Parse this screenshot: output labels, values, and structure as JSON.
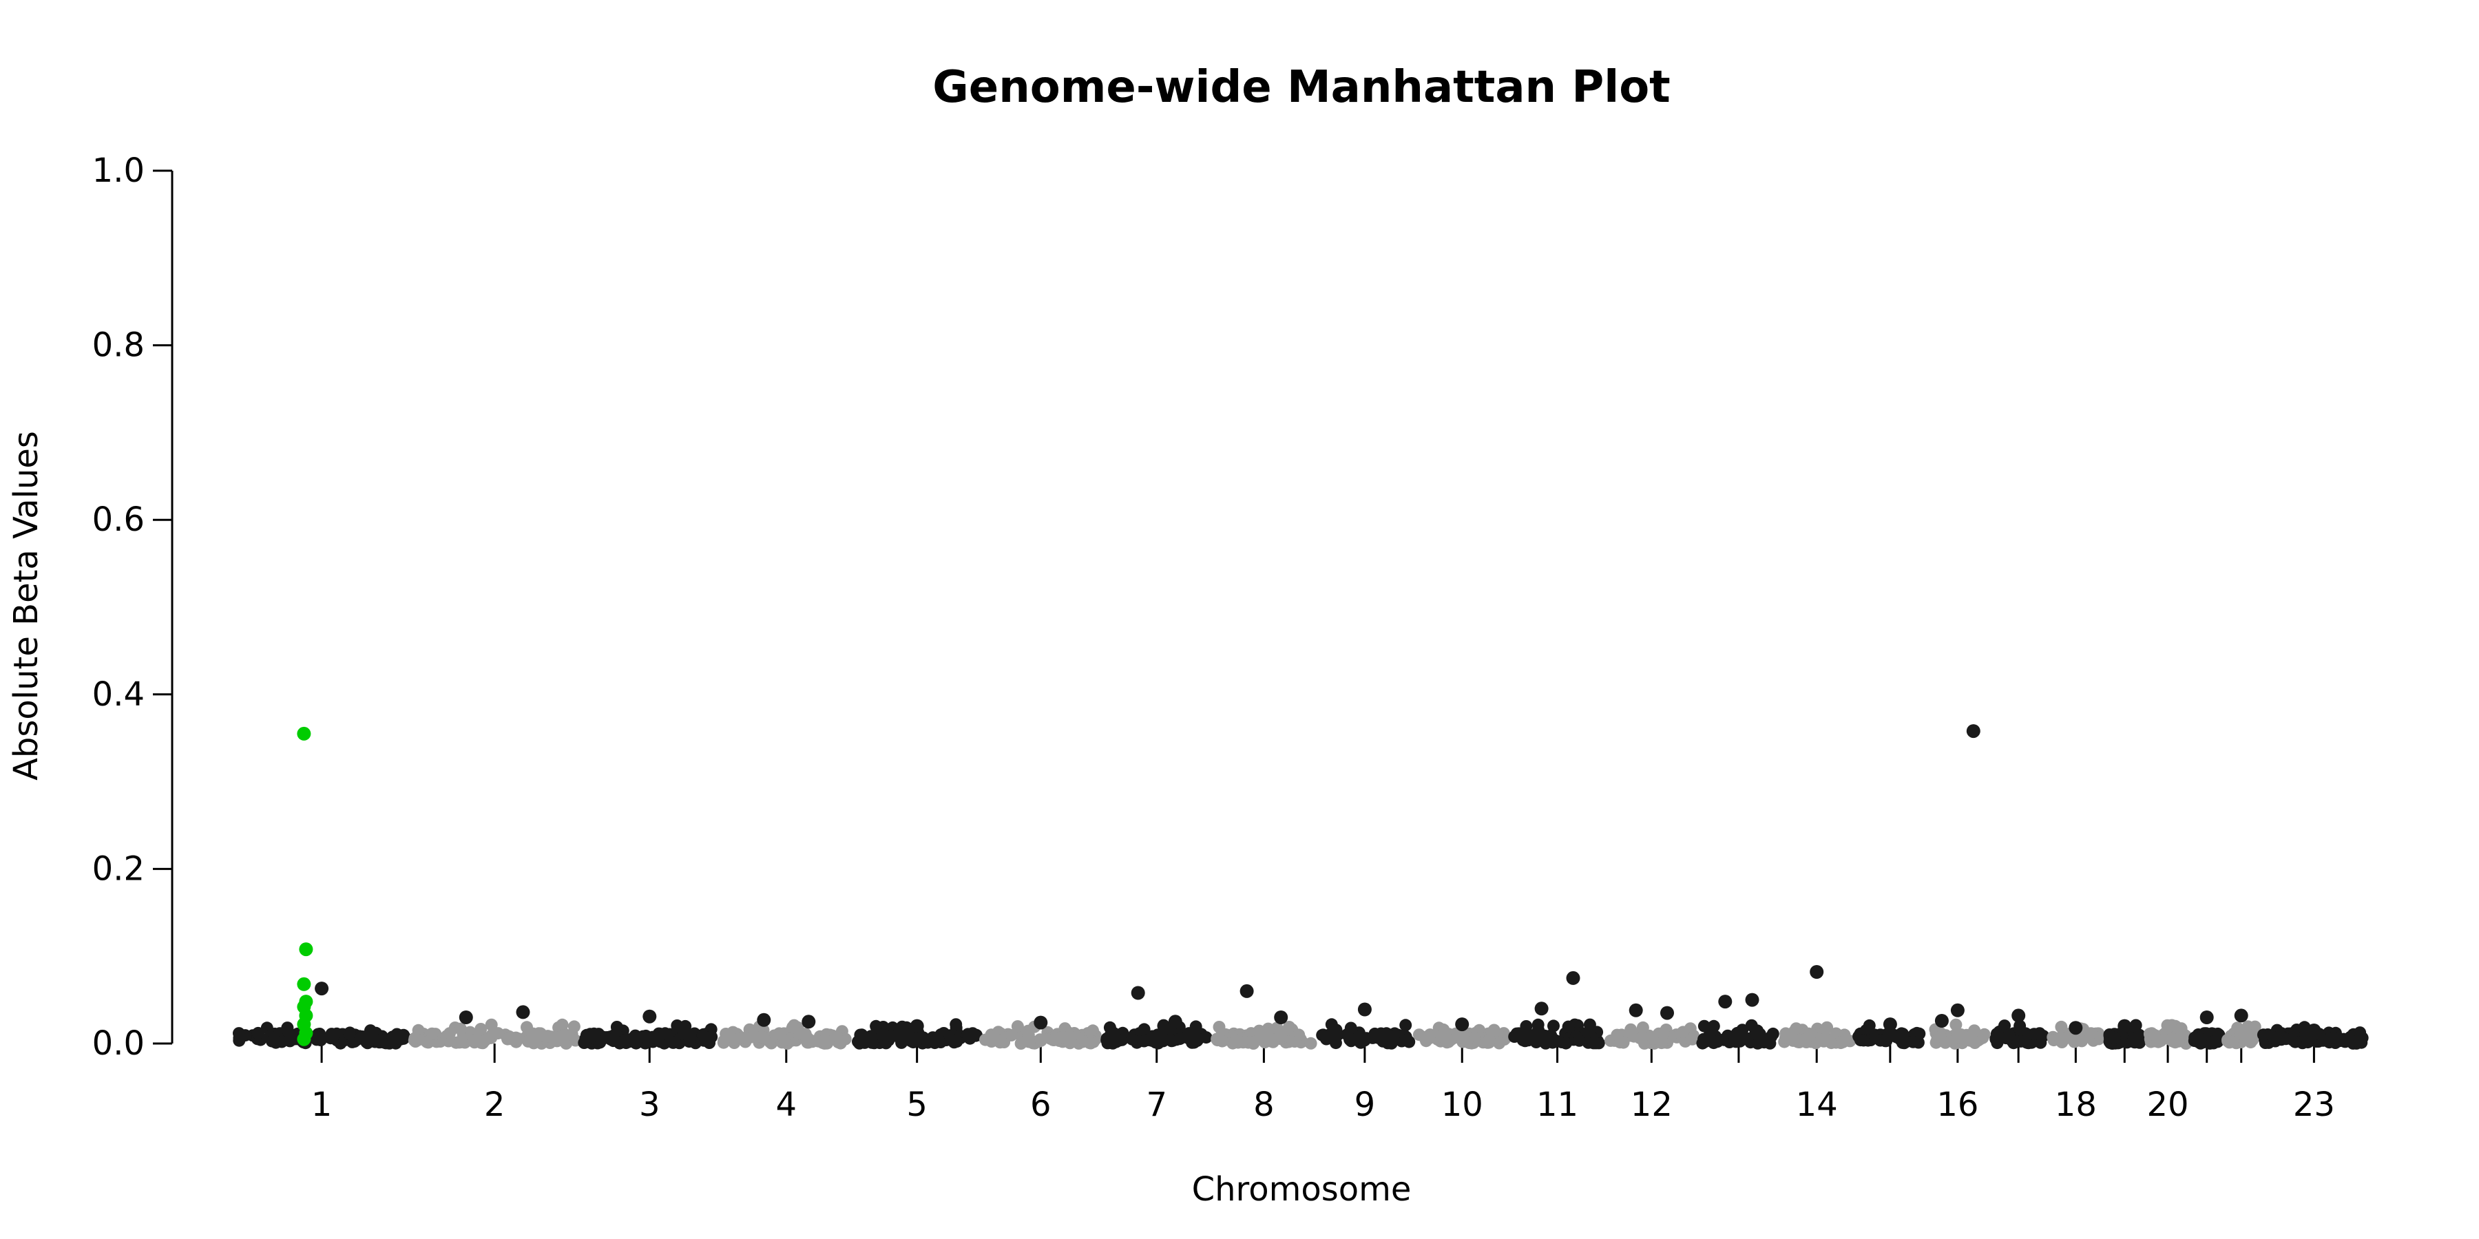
{
  "chart_data": {
    "type": "scatter",
    "title": "Genome-wide Manhattan Plot",
    "xlabel": "Chromosome",
    "ylabel": "Absolute Beta Values",
    "ylim": [
      0,
      1.0
    ],
    "y_ticks": [
      "0.0",
      "0.2",
      "0.4",
      "0.6",
      "0.8",
      "1.0"
    ],
    "grid": false,
    "legend": "none",
    "chromosome_labels": [
      "1",
      "2",
      "3",
      "4",
      "5",
      "6",
      "7",
      "8",
      "9",
      "10",
      "11",
      "12",
      "14",
      "16",
      "18",
      "20",
      "23"
    ],
    "chromosomes": [
      {
        "chr": "1",
        "color": "#1a1a1a"
      },
      {
        "chr": "2",
        "color": "#999999"
      },
      {
        "chr": "3",
        "color": "#1a1a1a"
      },
      {
        "chr": "4",
        "color": "#999999"
      },
      {
        "chr": "5",
        "color": "#1a1a1a"
      },
      {
        "chr": "6",
        "color": "#999999"
      },
      {
        "chr": "7",
        "color": "#1a1a1a"
      },
      {
        "chr": "8",
        "color": "#999999"
      },
      {
        "chr": "9",
        "color": "#1a1a1a"
      },
      {
        "chr": "10",
        "color": "#999999"
      },
      {
        "chr": "11",
        "color": "#1a1a1a"
      },
      {
        "chr": "12",
        "color": "#999999"
      },
      {
        "chr": "13",
        "color": "#1a1a1a"
      },
      {
        "chr": "14",
        "color": "#999999"
      },
      {
        "chr": "15",
        "color": "#1a1a1a"
      },
      {
        "chr": "16",
        "color": "#999999"
      },
      {
        "chr": "17",
        "color": "#1a1a1a"
      },
      {
        "chr": "18",
        "color": "#999999"
      },
      {
        "chr": "19",
        "color": "#1a1a1a"
      },
      {
        "chr": "20",
        "color": "#999999"
      },
      {
        "chr": "21",
        "color": "#1a1a1a"
      },
      {
        "chr": "22",
        "color": "#999999"
      },
      {
        "chr": "23",
        "color": "#1a1a1a"
      }
    ],
    "highlight_color": "#00cc00",
    "series": [
      {
        "highlight": false,
        "points": [
          {
            "chr": "1",
            "value": 0.063
          },
          {
            "chr": "2",
            "value": 0.03
          },
          {
            "chr": "2",
            "value": 0.036
          },
          {
            "chr": "3",
            "value": 0.031
          },
          {
            "chr": "4",
            "value": 0.027
          },
          {
            "chr": "4",
            "value": 0.025
          },
          {
            "chr": "5",
            "value": 0.02
          },
          {
            "chr": "6",
            "value": 0.024
          },
          {
            "chr": "7",
            "value": 0.058
          },
          {
            "chr": "7",
            "value": 0.025
          },
          {
            "chr": "8",
            "value": 0.06
          },
          {
            "chr": "8",
            "value": 0.03
          },
          {
            "chr": "9",
            "value": 0.039
          },
          {
            "chr": "10",
            "value": 0.022
          },
          {
            "chr": "11",
            "value": 0.04
          },
          {
            "chr": "11",
            "value": 0.075
          },
          {
            "chr": "12",
            "value": 0.038
          },
          {
            "chr": "12",
            "value": 0.035
          },
          {
            "chr": "13",
            "value": 0.048
          },
          {
            "chr": "13",
            "value": 0.05
          },
          {
            "chr": "14",
            "value": 0.082
          },
          {
            "chr": "15",
            "value": 0.022
          },
          {
            "chr": "16",
            "value": 0.026
          },
          {
            "chr": "16",
            "value": 0.038
          },
          {
            "chr": "16",
            "value": 0.358
          },
          {
            "chr": "17",
            "value": 0.032
          },
          {
            "chr": "18",
            "value": 0.018
          },
          {
            "chr": "19",
            "value": 0.02
          },
          {
            "chr": "21",
            "value": 0.03
          },
          {
            "chr": "22",
            "value": 0.032
          },
          {
            "chr": "23",
            "value": 0.015
          }
        ]
      },
      {
        "highlight": true,
        "points": [
          {
            "chr": "1",
            "value": 0.355
          },
          {
            "chr": "1",
            "value": 0.108
          },
          {
            "chr": "1",
            "value": 0.068
          },
          {
            "chr": "1",
            "value": 0.048
          },
          {
            "chr": "1",
            "value": 0.042
          },
          {
            "chr": "1",
            "value": 0.032
          },
          {
            "chr": "1",
            "value": 0.022
          },
          {
            "chr": "1",
            "value": 0.012
          },
          {
            "chr": "1",
            "value": 0.005
          }
        ]
      }
    ]
  }
}
